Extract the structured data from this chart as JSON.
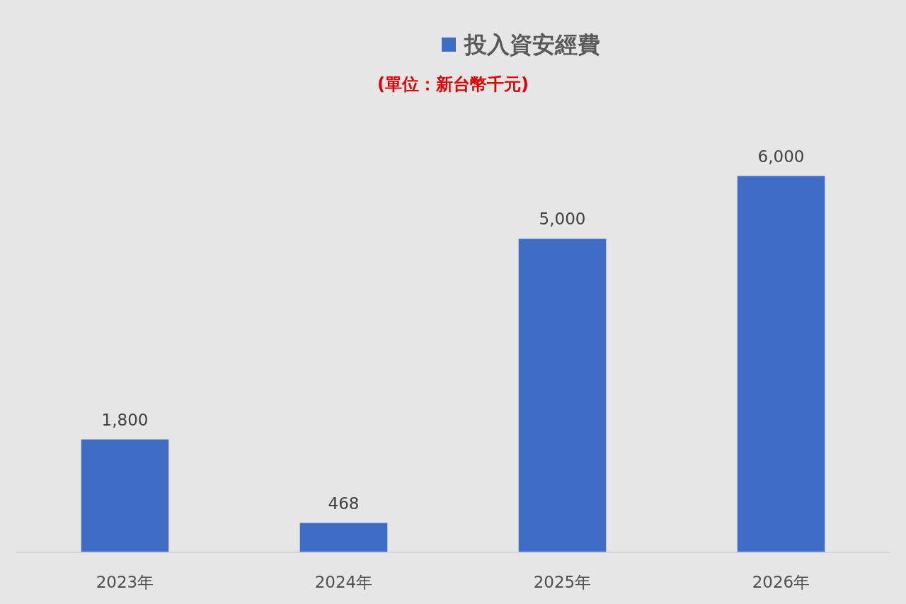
{
  "chart_data": {
    "type": "bar",
    "subtitle": "(單位：新台幣千元)",
    "categories": [
      "2023年",
      "2024年",
      "2025年",
      "2026年"
    ],
    "series": [
      {
        "name": "投入資安經費",
        "color": "#3f6dc6",
        "values": [
          1800,
          468,
          5000,
          6000
        ],
        "value_labels": [
          "1,800",
          "468",
          "5,000",
          "6,000"
        ]
      }
    ],
    "legend": "top"
  }
}
